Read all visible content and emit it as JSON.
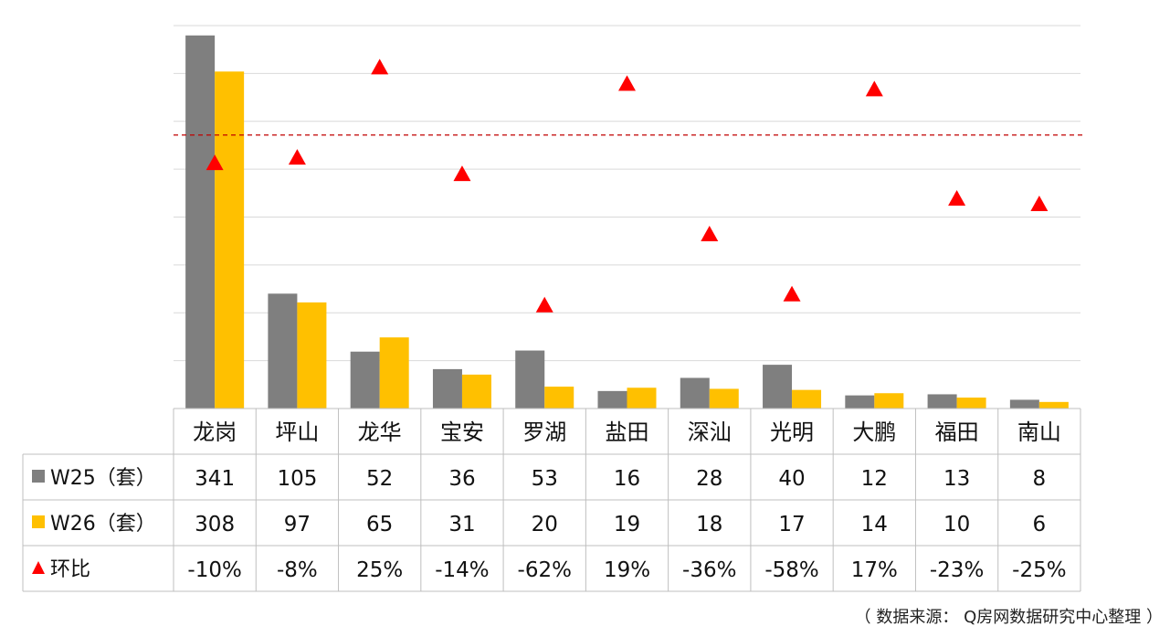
{
  "chart_data": {
    "type": "bar",
    "title": "",
    "xlabel": "",
    "ylabel": "",
    "categories": [
      "龙岗",
      "坪山",
      "龙华",
      "宝安",
      "罗湖",
      "盐田",
      "深汕",
      "光明",
      "大鹏",
      "福田",
      "南山"
    ],
    "series": [
      {
        "name": "W25（套）",
        "kind": "bar",
        "color": "#7f7f7f",
        "values": [
          341,
          105,
          52,
          36,
          53,
          16,
          28,
          40,
          12,
          13,
          8
        ]
      },
      {
        "name": "W26（套）",
        "kind": "bar",
        "color": "#ffc000",
        "values": [
          308,
          97,
          65,
          31,
          20,
          19,
          18,
          17,
          14,
          10,
          6
        ]
      },
      {
        "name": "环比",
        "kind": "marker",
        "marker": "triangle",
        "color": "#ff0000",
        "values": [
          -10,
          -8,
          25,
          -14,
          -62,
          19,
          -36,
          -58,
          17,
          -23,
          -25
        ],
        "display": [
          "-10%",
          "-8%",
          "25%",
          "-14%",
          "-62%",
          "19%",
          "-36%",
          "-58%",
          "17%",
          "-23%",
          "-25%"
        ]
      }
    ],
    "bar_ylim": [
      0,
      350
    ],
    "marker_ylim": [
      -100,
      40
    ],
    "reference_line": {
      "series": "环比",
      "value": 0,
      "style": "dashed",
      "color": "#c00000"
    },
    "grid": true,
    "legend": "data-table",
    "data_table": true
  },
  "source_note": "（ 数据来源： Q房网数据研究中心整理 ）"
}
